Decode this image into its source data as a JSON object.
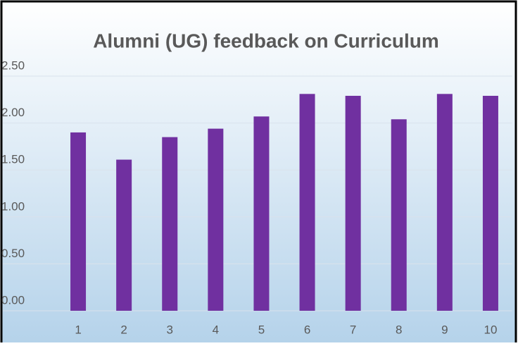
{
  "chart_data": {
    "type": "bar",
    "title": "Alumni (UG) feedback on Curriculum",
    "categories": [
      "1",
      "2",
      "3",
      "4",
      "5",
      "6",
      "7",
      "8",
      "9",
      "10"
    ],
    "values": [
      1.9,
      1.61,
      1.85,
      1.94,
      2.07,
      2.31,
      2.29,
      2.04,
      2.31,
      2.29
    ],
    "color": "#7030a0",
    "ylim": [
      0,
      2.5
    ],
    "yticks": [
      {
        "value": 0,
        "label": "0.00"
      },
      {
        "value": 0.5,
        "label": "0.50"
      },
      {
        "value": 1,
        "label": "1.00"
      },
      {
        "value": 1.5,
        "label": "1.50"
      },
      {
        "value": 2,
        "label": "2.00"
      },
      {
        "value": 2.5,
        "label": "2.50"
      }
    ],
    "grid": true
  }
}
